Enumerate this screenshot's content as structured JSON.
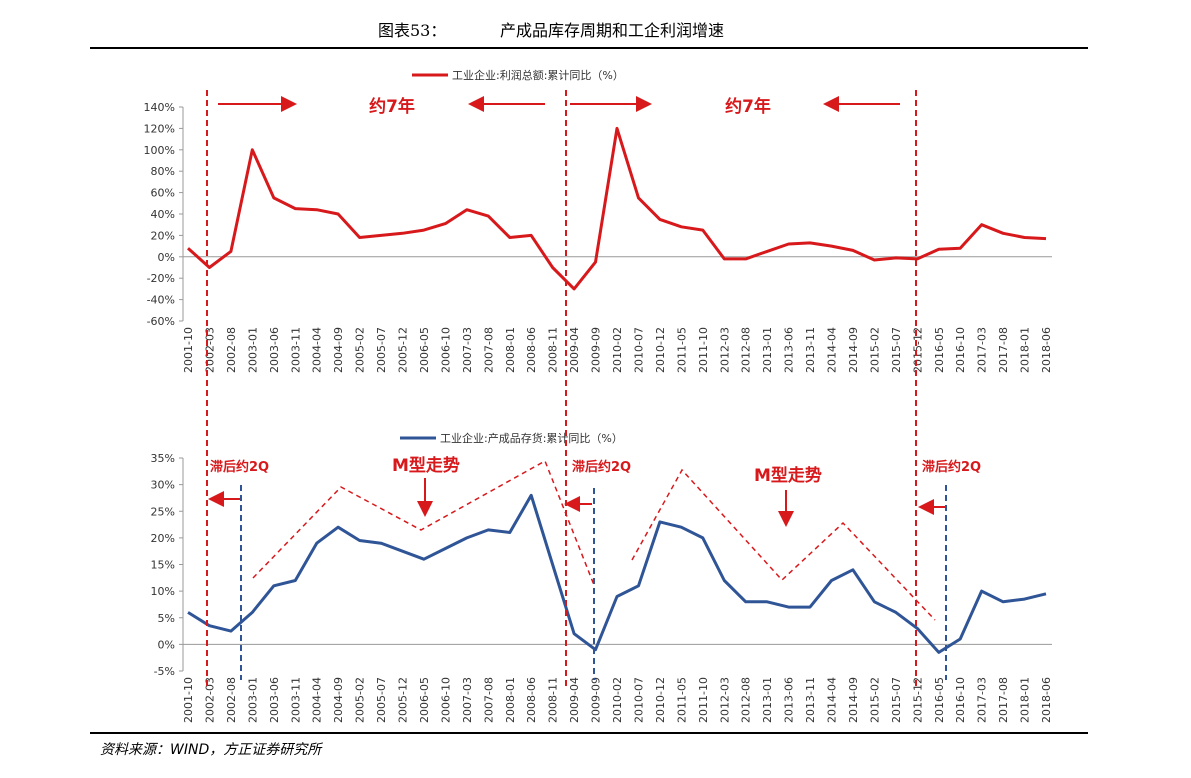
{
  "header": {
    "figure_label": "图表53：",
    "title": "产成品库存周期和工企利润增速"
  },
  "footer": {
    "source": "资料来源：WIND，方正证券研究所"
  },
  "chart_data": [
    {
      "type": "line",
      "categories": [
        "2001-10",
        "2002-03",
        "2002-08",
        "2003-01",
        "2003-06",
        "2003-11",
        "2004-04",
        "2004-09",
        "2005-02",
        "2005-07",
        "2005-12",
        "2006-05",
        "2006-10",
        "2007-03",
        "2007-08",
        "2008-01",
        "2008-06",
        "2008-11",
        "2009-04",
        "2009-09",
        "2010-02",
        "2010-07",
        "2010-12",
        "2011-05",
        "2011-10",
        "2012-03",
        "2012-08",
        "2013-01",
        "2013-06",
        "2013-11",
        "2014-04",
        "2014-09",
        "2015-02",
        "2015-07",
        "2015-12",
        "2016-05",
        "2016-10",
        "2017-03",
        "2017-08",
        "2018-01",
        "2018-06"
      ],
      "series": [
        {
          "name": "工业企业:利润总额:累计同比（%）",
          "color": "#d7191c",
          "values": [
            8,
            -10,
            5,
            100,
            55,
            45,
            44,
            40,
            18,
            20,
            22,
            25,
            31,
            44,
            38,
            18,
            20,
            -10,
            -30,
            -5,
            120,
            55,
            35,
            28,
            25,
            -2,
            -2,
            5,
            12,
            13,
            10,
            6,
            -3,
            -1,
            -2,
            7,
            8,
            30,
            22,
            18,
            17
          ]
        }
      ],
      "ylim": [
        -60,
        140
      ],
      "yticks": [
        {
          "value": -60,
          "label": "-60%"
        },
        {
          "value": -40,
          "label": "-40%"
        },
        {
          "value": -20,
          "label": "-20%"
        },
        {
          "value": 0,
          "label": "0%"
        },
        {
          "value": 20,
          "label": "20%"
        },
        {
          "value": 40,
          "label": "40%"
        },
        {
          "value": 60,
          "label": "60%"
        },
        {
          "value": 80,
          "label": "80%"
        },
        {
          "value": 100,
          "label": "100%"
        },
        {
          "value": 120,
          "label": "120%"
        },
        {
          "value": 140,
          "label": "140%"
        }
      ],
      "annotations": [
        "约7年",
        "约7年"
      ]
    },
    {
      "type": "line",
      "categories": [
        "2001-10",
        "2002-03",
        "2002-08",
        "2003-01",
        "2003-06",
        "2003-11",
        "2004-04",
        "2004-09",
        "2005-02",
        "2005-07",
        "2005-12",
        "2006-05",
        "2006-10",
        "2007-03",
        "2007-08",
        "2008-01",
        "2008-06",
        "2008-11",
        "2009-04",
        "2009-09",
        "2010-02",
        "2010-07",
        "2010-12",
        "2011-05",
        "2011-10",
        "2012-03",
        "2012-08",
        "2013-01",
        "2013-06",
        "2013-11",
        "2014-04",
        "2014-09",
        "2015-02",
        "2015-07",
        "2015-12",
        "2016-05",
        "2016-10",
        "2017-03",
        "2017-08",
        "2018-01",
        "2018-06"
      ],
      "series": [
        {
          "name": "工业企业:产成品存货:累计同比（%）",
          "color": "#2f5597",
          "values": [
            6,
            3.5,
            2.5,
            6,
            11,
            12,
            19,
            22,
            19.5,
            19,
            17.5,
            16,
            18,
            20,
            21.5,
            21,
            28,
            15,
            2,
            -1,
            9,
            11,
            23,
            22,
            20,
            12,
            8,
            8,
            7,
            7,
            12,
            14,
            8,
            6,
            3,
            -1.5,
            1,
            10,
            8,
            8.5,
            9.5
          ]
        }
      ],
      "ylim": [
        -5,
        35
      ],
      "yticks": [
        {
          "value": -5,
          "label": "-5%"
        },
        {
          "value": 0,
          "label": "0%"
        },
        {
          "value": 5,
          "label": "5%"
        },
        {
          "value": 10,
          "label": "10%"
        },
        {
          "value": 15,
          "label": "15%"
        },
        {
          "value": 20,
          "label": "20%"
        },
        {
          "value": 25,
          "label": "25%"
        },
        {
          "value": 30,
          "label": "30%"
        },
        {
          "value": 35,
          "label": "35%"
        }
      ],
      "annotations": [
        "滞后约2Q",
        "M型走势",
        "滞后约2Q",
        "M型走势",
        "滞后约2Q"
      ]
    }
  ]
}
